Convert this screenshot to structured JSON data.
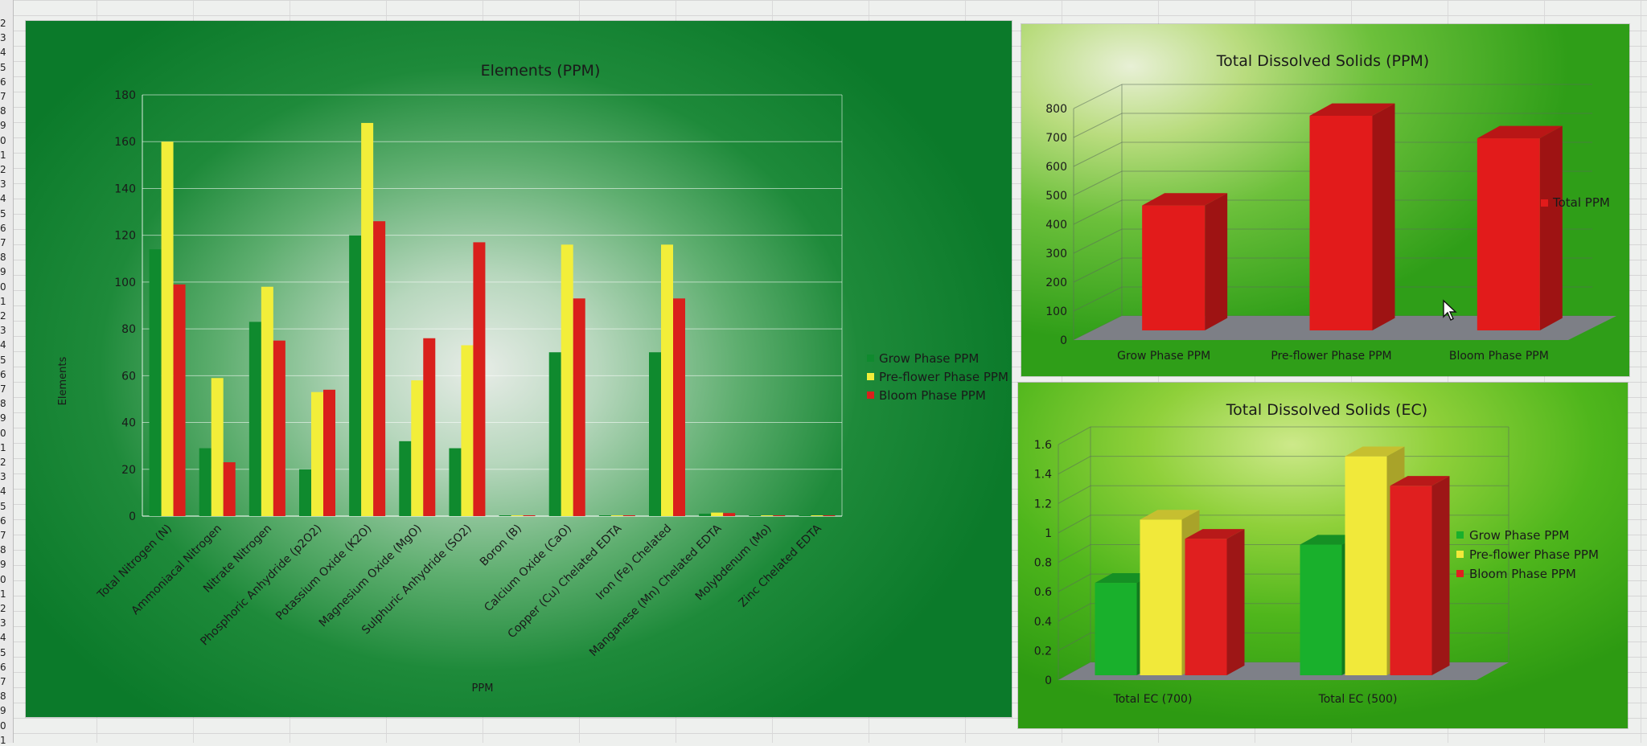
{
  "sheet": {
    "row_numbers": [
      "2",
      "3",
      "4",
      "5",
      "6",
      "7",
      "8",
      "9",
      "0",
      "1",
      "2",
      "3",
      "4",
      "5",
      "6",
      "7",
      "8",
      "9",
      "0",
      "1",
      "2",
      "3",
      "4",
      "5",
      "6",
      "7",
      "8",
      "9",
      "0",
      "1",
      "2",
      "3",
      "4",
      "5",
      "6",
      "7",
      "8",
      "9",
      "0",
      "1",
      "2",
      "3",
      "4",
      "5",
      "6",
      "7",
      "8",
      "9",
      "0",
      "1"
    ]
  },
  "chart_data": [
    {
      "type": "bar",
      "title": "Elements (PPM)",
      "xlabel": "PPM",
      "ylabel": "Elements",
      "ylim": [
        0,
        180
      ],
      "yticks": [
        "0",
        "20",
        "40",
        "60",
        "80",
        "100",
        "120",
        "140",
        "160",
        "180"
      ],
      "grid": true,
      "legend_position": "right",
      "categories": [
        "Total Nitrogen (N)",
        "Ammoniacal Nitrogen",
        "Nitrate Nitrogen",
        "Phosphoric Anhydride (p2O2)",
        "Potassium Oxide (K2O)",
        "Magnesium Oxide (MgO)",
        "Sulphuric Anhydride (SO2)",
        "Boron (B)",
        "Calcium Oxide (CaO)",
        "Copper (Cu) Chelated EDTA",
        "Iron (Fe) Chelated",
        "Manganese (Mn) Chelated EDTA",
        "Molybdenum (Mo)",
        "Zinc Chelated EDTA"
      ],
      "series": [
        {
          "name": "Grow Phase PPM",
          "color": "#0f8a2e",
          "values": [
            114,
            29,
            83,
            20,
            120,
            32,
            29,
            0.2,
            70,
            0.1,
            70,
            1,
            0.1,
            0.2
          ]
        },
        {
          "name": "Pre-flower Phase PPM",
          "color": "#f2ee3a",
          "values": [
            160,
            59,
            98,
            53,
            168,
            58,
            73,
            0.3,
            116,
            0.1,
            116,
            1.5,
            0.1,
            0.3
          ]
        },
        {
          "name": "Bloom Phase PPM",
          "color": "#d9201c",
          "values": [
            99,
            23,
            75,
            54,
            126,
            76,
            117,
            0.3,
            93,
            0.1,
            93,
            1.3,
            0.1,
            0.3
          ]
        }
      ]
    },
    {
      "type": "bar",
      "title": "Total Dissolved Solids (PPM)",
      "ylim": [
        0,
        800
      ],
      "yticks": [
        "0",
        "100",
        "200",
        "300",
        "400",
        "500",
        "600",
        "700",
        "800"
      ],
      "grid": true,
      "three_d": true,
      "legend_position": "right",
      "categories": [
        "Grow Phase PPM",
        "Pre-flower Phase PPM",
        "Bloom Phase PPM"
      ],
      "series": [
        {
          "name": "Total PPM",
          "color": "#e21b1b",
          "values": [
            465,
            775,
            697
          ]
        }
      ]
    },
    {
      "type": "bar",
      "title": "Total Dissolved Solids (EC)",
      "ylim": [
        0,
        1.6
      ],
      "yticks": [
        "0",
        "0.2",
        "0.4",
        "0.6",
        "0.8",
        "1",
        "1.2",
        "1.4",
        "1.6"
      ],
      "grid": true,
      "three_d": true,
      "legend_position": "right",
      "categories": [
        "Total EC (700)",
        "Total EC (500)"
      ],
      "series": [
        {
          "name": "Grow Phase PPM",
          "color": "#19b02c",
          "values": [
            0.66,
            0.92
          ]
        },
        {
          "name": "Pre-flower Phase PPM",
          "color": "#f1e93a",
          "values": [
            1.09,
            1.52
          ]
        },
        {
          "name": "Bloom Phase PPM",
          "color": "#e01f1f",
          "values": [
            0.96,
            1.32
          ]
        }
      ]
    }
  ]
}
